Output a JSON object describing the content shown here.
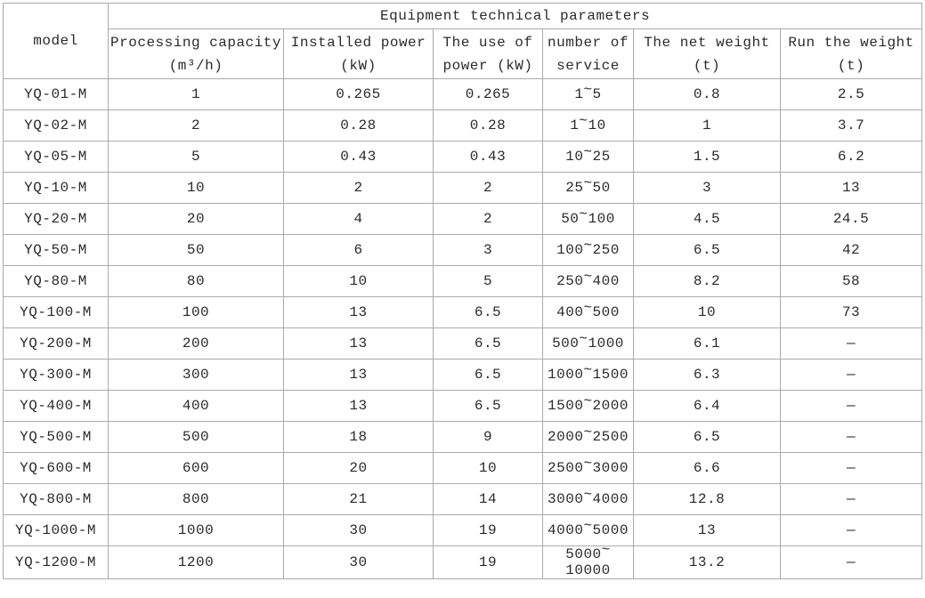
{
  "table": {
    "title": "Equipment technical parameters",
    "model_header": "model",
    "columns": [
      {
        "label": "Processing capacity\n(m³/h)"
      },
      {
        "label": "Installed power\n(kW)"
      },
      {
        "label": "The use of\npower (kW)"
      },
      {
        "label": "number of\nservice"
      },
      {
        "label": "The net weight\n(t)"
      },
      {
        "label": "Run the weight\n(t)"
      }
    ],
    "rows": [
      {
        "model": "YQ-01-M",
        "values": [
          "1",
          "0.265",
          "0.265",
          "1~5",
          "0.8",
          "2.5"
        ]
      },
      {
        "model": "YQ-02-M",
        "values": [
          "2",
          "0.28",
          "0.28",
          "1~10",
          "1",
          "3.7"
        ]
      },
      {
        "model": "YQ-05-M",
        "values": [
          "5",
          "0.43",
          "0.43",
          "10~25",
          "1.5",
          "6.2"
        ]
      },
      {
        "model": "YQ-10-M",
        "values": [
          "10",
          "2",
          "2",
          "25~50",
          "3",
          "13"
        ]
      },
      {
        "model": "YQ-20-M",
        "values": [
          "20",
          "4",
          "2",
          "50~100",
          "4.5",
          "24.5"
        ]
      },
      {
        "model": "YQ-50-M",
        "values": [
          "50",
          "6",
          "3",
          "100~250",
          "6.5",
          "42"
        ]
      },
      {
        "model": "YQ-80-M",
        "values": [
          "80",
          "10",
          "5",
          "250~400",
          "8.2",
          "58"
        ]
      },
      {
        "model": "YQ-100-M",
        "values": [
          "100",
          "13",
          "6.5",
          "400~500",
          "10",
          "73"
        ]
      },
      {
        "model": "YQ-200-M",
        "values": [
          "200",
          "13",
          "6.5",
          "500~1000",
          "6.1",
          "—"
        ]
      },
      {
        "model": "YQ-300-M",
        "values": [
          "300",
          "13",
          "6.5",
          "1000~1500",
          "6.3",
          "—"
        ]
      },
      {
        "model": "YQ-400-M",
        "values": [
          "400",
          "13",
          "6.5",
          "1500~2000",
          "6.4",
          "—"
        ]
      },
      {
        "model": "YQ-500-M",
        "values": [
          "500",
          "18",
          "9",
          "2000~2500",
          "6.5",
          "—"
        ]
      },
      {
        "model": "YQ-600-M",
        "values": [
          "600",
          "20",
          "10",
          "2500~3000",
          "6.6",
          "—"
        ]
      },
      {
        "model": "YQ-800-M",
        "values": [
          "800",
          "21",
          "14",
          "3000~4000",
          "12.8",
          "—"
        ]
      },
      {
        "model": "YQ-1000-M",
        "values": [
          "1000",
          "30",
          "19",
          "4000~5000",
          "13",
          "—"
        ]
      },
      {
        "model": "YQ-1200-M",
        "values": [
          "1200",
          "30",
          "19",
          "5000~10000",
          "13.2",
          "—"
        ]
      }
    ]
  }
}
